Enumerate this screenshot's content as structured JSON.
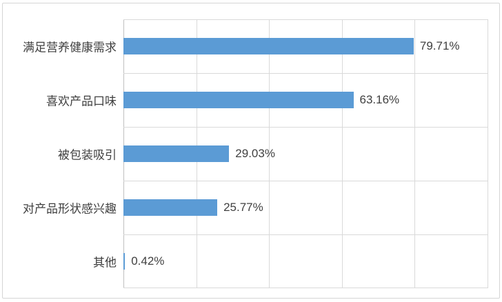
{
  "figure": {
    "background": "#FFFFFF",
    "frame_border_color": "#D5D5D5"
  },
  "chart_data": {
    "type": "bar",
    "orientation": "horizontal",
    "title": "",
    "categories": [
      "满足营养健康需求",
      "喜欢产品口味",
      "被包装吸引",
      "对产品形状感兴趣",
      "其他"
    ],
    "values": [
      79.71,
      63.16,
      29.03,
      25.77,
      0.42
    ],
    "data_labels": [
      "79.71%",
      "63.16%",
      "29.03%",
      "25.77%",
      "0.42%"
    ],
    "xlabel": "",
    "ylabel": "",
    "xlim": [
      0,
      100
    ],
    "gridline_step": 20,
    "grid": true,
    "legend": "none",
    "bar_color": "#5B9BD5",
    "gridline_color": "#D9D9D9",
    "axis_line_color": "#BFBFBF",
    "label_color": "#404040"
  }
}
